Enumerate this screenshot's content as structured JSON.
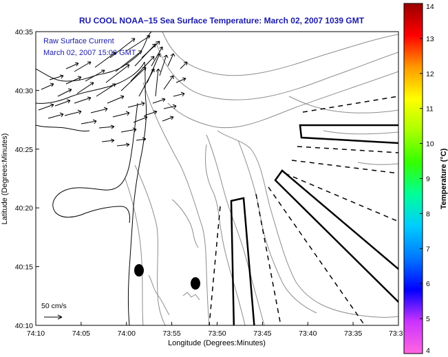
{
  "title": "RU COOL  NOAA−15  Sea Surface Temperature:  March 02, 2007 1039 GMT",
  "annotation": {
    "line1": "Raw Surface Current",
    "line2": "March 02, 2007  15:00 GMT"
  },
  "scale_label": "50 cm/s",
  "xlabel": "Longitude (Degrees:Minutes)",
  "ylabel": "Latitude (Degrees:Minutes)",
  "x_ticks": [
    "74:10",
    "74:05",
    "74:00",
    "73:55",
    "73:50",
    "73:45",
    "73:40",
    "73:35",
    "73:3"
  ],
  "y_ticks": [
    "40:35",
    "40:30",
    "40:25",
    "40:20",
    "40:15",
    "40:10"
  ],
  "colorbar": {
    "title": "Temperature (°C)",
    "min": 4,
    "max": 14,
    "ticks": [
      "4",
      "5",
      "6",
      "7",
      "8",
      "9",
      "10",
      "11",
      "12",
      "13",
      "14"
    ],
    "colors": [
      "#ff66e0",
      "#cc33ff",
      "#0000ff",
      "#0077ff",
      "#00ccff",
      "#00ff99",
      "#33ff00",
      "#aaff00",
      "#ffff00",
      "#ff9900",
      "#ff0000",
      "#990000"
    ]
  },
  "colors": {
    "title": "#1a1aa6",
    "contour": "#8c8c8c",
    "coast": "#000000"
  }
}
